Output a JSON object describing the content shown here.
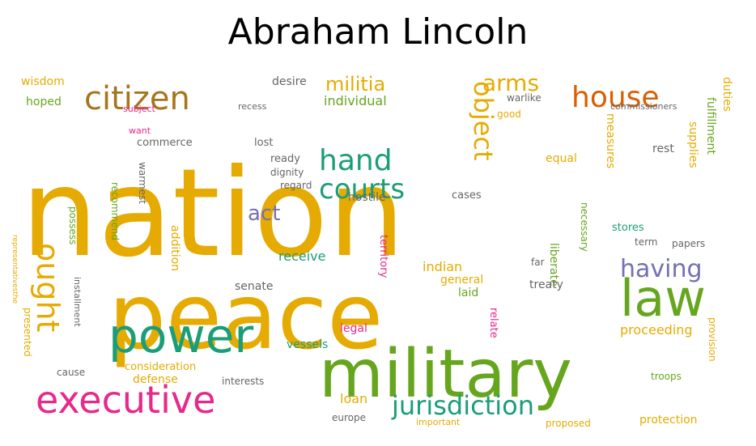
{
  "title": "Abraham Lincoln",
  "palette": {
    "gold": "#e6ab02",
    "teal": "#1b9e77",
    "green": "#66a61e",
    "pink": "#e7298a",
    "brown": "#a6761d",
    "orange": "#d95f02",
    "purple": "#7570b3",
    "gray": "#666666"
  },
  "words": [
    {
      "text": "nation",
      "color": "gold"
    },
    {
      "text": "peace",
      "color": "gold"
    },
    {
      "text": "military",
      "color": "green"
    },
    {
      "text": "power",
      "color": "teal"
    },
    {
      "text": "law",
      "color": "green"
    },
    {
      "text": "executive",
      "color": "pink"
    },
    {
      "text": "citizen",
      "color": "brown"
    },
    {
      "text": "house",
      "color": "orange"
    },
    {
      "text": "hand",
      "color": "teal"
    },
    {
      "text": "courts",
      "color": "teal"
    },
    {
      "text": "jurisdiction",
      "color": "teal"
    },
    {
      "text": "ought",
      "color": "gold"
    },
    {
      "text": "object",
      "color": "gold"
    },
    {
      "text": "militia",
      "color": "gold"
    },
    {
      "text": "arms",
      "color": "gold"
    },
    {
      "text": "having",
      "color": "purple"
    },
    {
      "text": "act",
      "color": "purple"
    },
    {
      "text": "proceeding",
      "color": "gold"
    },
    {
      "text": "individual",
      "color": "green"
    },
    {
      "text": "loan",
      "color": "gold"
    },
    {
      "text": "desire",
      "color": "gray"
    },
    {
      "text": "wisdom",
      "color": "gold"
    },
    {
      "text": "hoped",
      "color": "green"
    },
    {
      "text": "warlike",
      "color": "gray"
    },
    {
      "text": "commissioners",
      "color": "gray"
    },
    {
      "text": "duties",
      "color": "gold"
    },
    {
      "text": "fulfillment",
      "color": "green"
    },
    {
      "text": "supplies",
      "color": "gold"
    },
    {
      "text": "measures",
      "color": "gold"
    },
    {
      "text": "rest",
      "color": "gray"
    },
    {
      "text": "equal",
      "color": "gold"
    },
    {
      "text": "commerce",
      "color": "gray"
    },
    {
      "text": "ready",
      "color": "gray"
    },
    {
      "text": "dignity",
      "color": "gray"
    },
    {
      "text": "regard",
      "color": "gray"
    },
    {
      "text": "hostile",
      "color": "gray"
    },
    {
      "text": "lost",
      "color": "gray"
    },
    {
      "text": "recommend",
      "color": "green"
    },
    {
      "text": "warmest",
      "color": "gray"
    },
    {
      "text": "want",
      "color": "pink"
    },
    {
      "text": "subject",
      "color": "pink"
    },
    {
      "text": "recess",
      "color": "gray"
    },
    {
      "text": "possess",
      "color": "green"
    },
    {
      "text": "receive",
      "color": "teal"
    },
    {
      "text": "indian",
      "color": "gold"
    },
    {
      "text": "general",
      "color": "gold"
    },
    {
      "text": "laid",
      "color": "green"
    },
    {
      "text": "cases",
      "color": "gray"
    },
    {
      "text": "territory",
      "color": "pink"
    },
    {
      "text": "liberate",
      "color": "green"
    },
    {
      "text": "stores",
      "color": "teal"
    },
    {
      "text": "term",
      "color": "gray"
    },
    {
      "text": "papers",
      "color": "gray"
    },
    {
      "text": "necessary",
      "color": "green"
    },
    {
      "text": "senate",
      "color": "gray"
    },
    {
      "text": "treaty",
      "color": "gray"
    },
    {
      "text": "addition",
      "color": "gold"
    },
    {
      "text": "installment",
      "color": "gray"
    },
    {
      "text": "presented",
      "color": "gold"
    },
    {
      "text": "consideration",
      "color": "gold"
    },
    {
      "text": "defense",
      "color": "gold"
    },
    {
      "text": "cause",
      "color": "gray"
    },
    {
      "text": "vessels",
      "color": "teal"
    },
    {
      "text": "legal",
      "color": "pink"
    },
    {
      "text": "relate",
      "color": "pink"
    },
    {
      "text": "interests",
      "color": "gray"
    },
    {
      "text": "europe",
      "color": "gray"
    },
    {
      "text": "important",
      "color": "gold"
    },
    {
      "text": "proposed",
      "color": "gold"
    },
    {
      "text": "protection",
      "color": "gold"
    },
    {
      "text": "troops",
      "color": "green"
    },
    {
      "text": "provision",
      "color": "gold"
    },
    {
      "text": "far",
      "color": "gray"
    },
    {
      "text": "good",
      "color": "gold"
    },
    {
      "text": "representativesthe",
      "color": "gold"
    }
  ]
}
